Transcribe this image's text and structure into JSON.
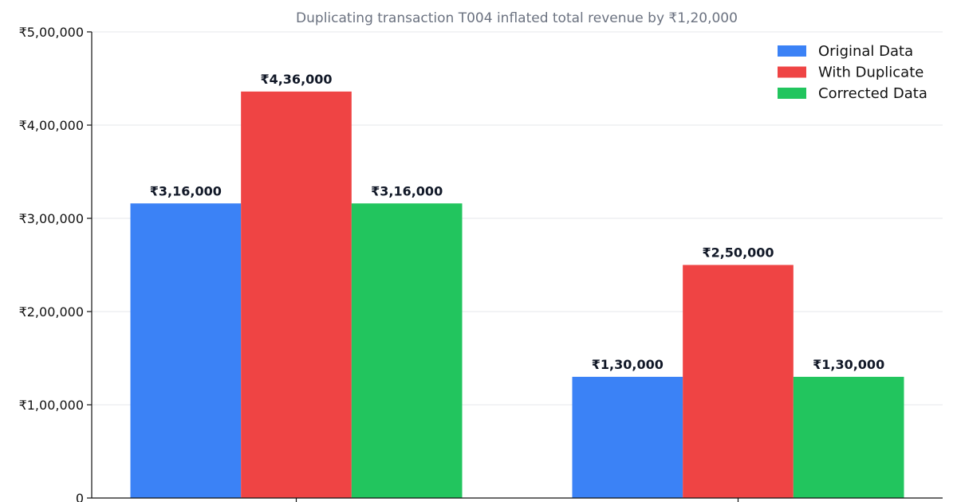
{
  "chart_data": {
    "type": "bar",
    "title": "Duplicating transaction T004 inflated total revenue by ₹1,20,000",
    "xlabel": "",
    "ylabel": "",
    "categories": [
      "",
      ""
    ],
    "series": [
      {
        "name": "Original Data",
        "color": "#3b82f6",
        "values": [
          316000,
          130000
        ],
        "labels": [
          "₹3,16,000",
          "₹1,30,000"
        ]
      },
      {
        "name": "With Duplicate",
        "color": "#ef4444",
        "values": [
          436000,
          250000
        ],
        "labels": [
          "₹4,36,000",
          "₹2,50,000"
        ]
      },
      {
        "name": "Corrected Data",
        "color": "#22c55e",
        "values": [
          316000,
          130000
        ],
        "labels": [
          "₹3,16,000",
          "₹1,30,000"
        ]
      }
    ],
    "ylim": [
      0,
      500000
    ],
    "yticks": [
      0,
      100000,
      200000,
      300000,
      400000,
      500000
    ],
    "ytick_labels": [
      "0",
      "₹1,00,000",
      "₹2,00,000",
      "₹3,00,000",
      "₹4,00,000",
      "₹5,00,000"
    ],
    "grid": "horizontal",
    "legend_position": "top-right"
  }
}
